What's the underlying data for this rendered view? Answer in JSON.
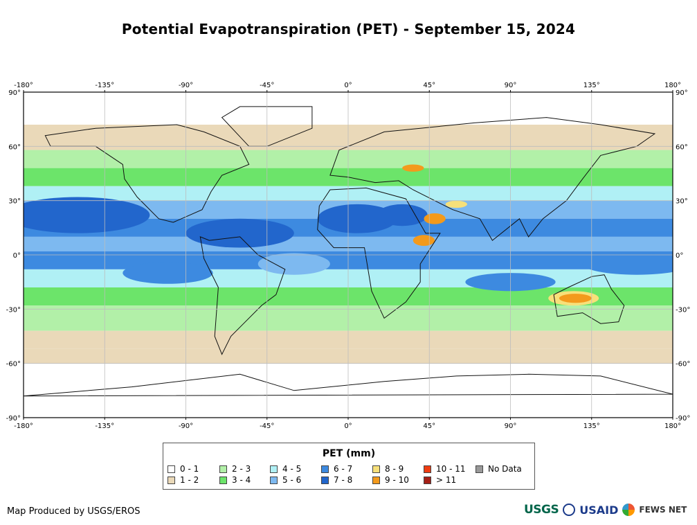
{
  "title": "Potential Evapotranspiration (PET) - September 15, 2024",
  "axes": {
    "lon_labels": [
      "-180°",
      "-135°",
      "-90°",
      "-45°",
      "0°",
      "45°",
      "90°",
      "135°",
      "180°"
    ],
    "lat_labels": [
      "90°",
      "60°",
      "30°",
      "0°",
      "-30°",
      "-60°",
      "-90°"
    ],
    "lon_range": [
      -180,
      180
    ],
    "lat_range": [
      -90,
      90
    ],
    "grid": true
  },
  "legend": {
    "title": "PET (mm)",
    "items": [
      {
        "label": "0 - 1",
        "color": "#ffffff"
      },
      {
        "label": "1 - 2",
        "color": "#ead9b9"
      },
      {
        "label": "2 - 3",
        "color": "#b2f0a8"
      },
      {
        "label": "3 - 4",
        "color": "#6ce46a"
      },
      {
        "label": "4 - 5",
        "color": "#b0f0f5"
      },
      {
        "label": "5 - 6",
        "color": "#7db9f0"
      },
      {
        "label": "6 - 7",
        "color": "#3d8ae0"
      },
      {
        "label": "7 - 8",
        "color": "#2266cc"
      },
      {
        "label": "8 - 9",
        "color": "#f7e07a"
      },
      {
        "label": "9 - 10",
        "color": "#f39a1c"
      },
      {
        "label": "10 - 11",
        "color": "#ee3c12"
      },
      {
        "label": "> 11",
        "color": "#a51f16"
      },
      {
        "label": "No Data",
        "color": "#999999"
      }
    ]
  },
  "credit": "Map Produced by USGS/EROS",
  "logos": {
    "usgs": "USGS",
    "usaid": "USAID",
    "fews": "FEWS NET"
  }
}
